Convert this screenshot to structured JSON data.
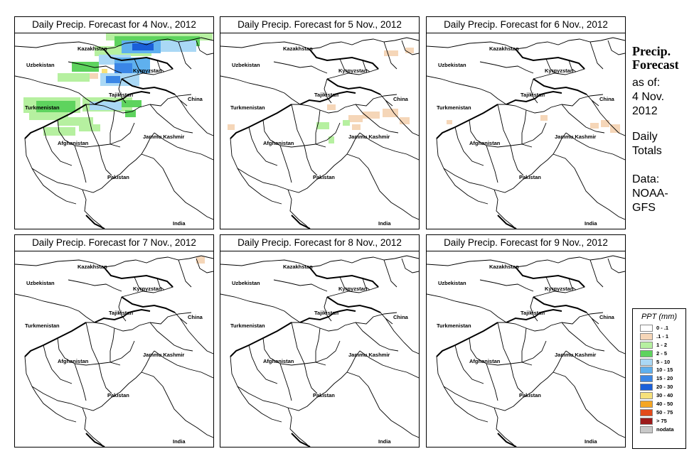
{
  "panels": [
    {
      "title": "Daily Precip. Forecast for  4 Nov., 2012"
    },
    {
      "title": "Daily Precip. Forecast for  5 Nov., 2012"
    },
    {
      "title": "Daily Precip. Forecast for  6 Nov., 2012"
    },
    {
      "title": "Daily Precip. Forecast for  7 Nov., 2012"
    },
    {
      "title": "Daily Precip. Forecast for  8 Nov., 2012"
    },
    {
      "title": "Daily Precip. Forecast for  9 Nov., 2012"
    }
  ],
  "map_labels": {
    "kazakhstan": "Kazakhstan",
    "uzbekistan": "Uzbekistan",
    "kyrgyzstan": "Kyrgyzstan",
    "china": "China",
    "tajikistan": "Tajikistan",
    "turkmenistan": "Turkmenistan",
    "jammu_kashmir": "Jammu Kashmir",
    "afghanistan": "Afghanistan",
    "pakistan": "Pakistan",
    "india": "India"
  },
  "sidebar": {
    "title_line1": "Precip.",
    "title_line2": "Forecast",
    "asof_line1": "as of:",
    "asof_line2": "4 Nov.",
    "asof_line3": "2012",
    "totals_line1": "Daily",
    "totals_line2": "Totals",
    "data_line1": "Data:",
    "data_line2": "NOAA-",
    "data_line3": "GFS"
  },
  "legend": {
    "title": "PPT (mm)",
    "items": [
      {
        "label": "0 - .1",
        "color": "#ffffff"
      },
      {
        "label": ".1 - 1",
        "color": "#f5d6b8"
      },
      {
        "label": "1 - 2",
        "color": "#b6f0a0"
      },
      {
        "label": "2 - 5",
        "color": "#5ed35e"
      },
      {
        "label": "5 - 10",
        "color": "#aad8f5"
      },
      {
        "label": "10 - 15",
        "color": "#5fb0ee"
      },
      {
        "label": "15 - 20",
        "color": "#3a86e6"
      },
      {
        "label": "20 - 30",
        "color": "#1a5fd9"
      },
      {
        "label": "30 - 40",
        "color": "#f7e17a"
      },
      {
        "label": "40 - 50",
        "color": "#f5a623"
      },
      {
        "label": "50 - 75",
        "color": "#e34a1a"
      },
      {
        "label": "> 75",
        "color": "#9c1a1a"
      },
      {
        "label": "nodata",
        "color": "#c8c8c8"
      }
    ]
  },
  "precip_cells": [
    [
      {
        "c": 2,
        "x": 128,
        "y": 0,
        "w": 150,
        "h": 10
      },
      {
        "c": 3,
        "x": 140,
        "y": 4,
        "w": 120,
        "h": 14
      },
      {
        "c": 2,
        "x": 112,
        "y": 18,
        "w": 80,
        "h": 14
      },
      {
        "c": 5,
        "x": 150,
        "y": 10,
        "w": 55,
        "h": 18
      },
      {
        "c": 7,
        "x": 165,
        "y": 14,
        "w": 30,
        "h": 10
      },
      {
        "c": 4,
        "x": 205,
        "y": 10,
        "w": 50,
        "h": 16
      },
      {
        "c": 4,
        "x": 118,
        "y": 30,
        "w": 45,
        "h": 14
      },
      {
        "c": 5,
        "x": 140,
        "y": 34,
        "w": 50,
        "h": 22
      },
      {
        "c": 6,
        "x": 140,
        "y": 42,
        "w": 25,
        "h": 14
      },
      {
        "c": 3,
        "x": 80,
        "y": 40,
        "w": 38,
        "h": 14
      },
      {
        "c": 2,
        "x": 60,
        "y": 56,
        "w": 45,
        "h": 12
      },
      {
        "c": 4,
        "x": 120,
        "y": 56,
        "w": 55,
        "h": 18
      },
      {
        "c": 6,
        "x": 128,
        "y": 60,
        "w": 20,
        "h": 10
      },
      {
        "c": 8,
        "x": 122,
        "y": 50,
        "w": 8,
        "h": 6
      },
      {
        "c": 1,
        "x": 105,
        "y": 56,
        "w": 12,
        "h": 8
      },
      {
        "c": 2,
        "x": 12,
        "y": 90,
        "w": 80,
        "h": 22
      },
      {
        "c": 3,
        "x": 30,
        "y": 95,
        "w": 55,
        "h": 16
      },
      {
        "c": 2,
        "x": 95,
        "y": 90,
        "w": 70,
        "h": 20
      },
      {
        "c": 4,
        "x": 105,
        "y": 96,
        "w": 45,
        "h": 12
      },
      {
        "c": 3,
        "x": 150,
        "y": 94,
        "w": 28,
        "h": 10
      },
      {
        "c": 2,
        "x": 20,
        "y": 112,
        "w": 55,
        "h": 10
      },
      {
        "c": 2,
        "x": 60,
        "y": 118,
        "w": 50,
        "h": 12
      },
      {
        "c": 2,
        "x": 40,
        "y": 132,
        "w": 45,
        "h": 12
      },
      {
        "c": 2,
        "x": 90,
        "y": 128,
        "w": 30,
        "h": 10
      },
      {
        "c": 3,
        "x": 155,
        "y": 108,
        "w": 15,
        "h": 10
      }
    ],
    [
      {
        "c": 1,
        "x": 230,
        "y": 24,
        "w": 20,
        "h": 8
      },
      {
        "c": 1,
        "x": 260,
        "y": 20,
        "w": 12,
        "h": 8
      },
      {
        "c": 1,
        "x": 150,
        "y": 100,
        "w": 12,
        "h": 8
      },
      {
        "c": 1,
        "x": 180,
        "y": 115,
        "w": 20,
        "h": 10
      },
      {
        "c": 1,
        "x": 200,
        "y": 110,
        "w": 24,
        "h": 10
      },
      {
        "c": 1,
        "x": 228,
        "y": 106,
        "w": 22,
        "h": 12
      },
      {
        "c": 1,
        "x": 252,
        "y": 118,
        "w": 14,
        "h": 10
      },
      {
        "c": 1,
        "x": 10,
        "y": 128,
        "w": 10,
        "h": 8
      },
      {
        "c": 2,
        "x": 135,
        "y": 125,
        "w": 18,
        "h": 10
      },
      {
        "c": 2,
        "x": 172,
        "y": 122,
        "w": 10,
        "h": 8
      },
      {
        "c": 1,
        "x": 185,
        "y": 128,
        "w": 12,
        "h": 8
      },
      {
        "c": 2,
        "x": 152,
        "y": 145,
        "w": 8,
        "h": 10
      }
    ],
    [
      {
        "c": 1,
        "x": 230,
        "y": 126,
        "w": 12,
        "h": 8
      },
      {
        "c": 1,
        "x": 245,
        "y": 122,
        "w": 12,
        "h": 10
      },
      {
        "c": 1,
        "x": 258,
        "y": 128,
        "w": 14,
        "h": 12
      },
      {
        "c": 1,
        "x": 160,
        "y": 115,
        "w": 10,
        "h": 8
      },
      {
        "c": 1,
        "x": 28,
        "y": 122,
        "w": 8,
        "h": 6
      }
    ],
    [
      {
        "c": 1,
        "x": 255,
        "y": 7,
        "w": 12,
        "h": 10
      }
    ],
    [],
    []
  ]
}
